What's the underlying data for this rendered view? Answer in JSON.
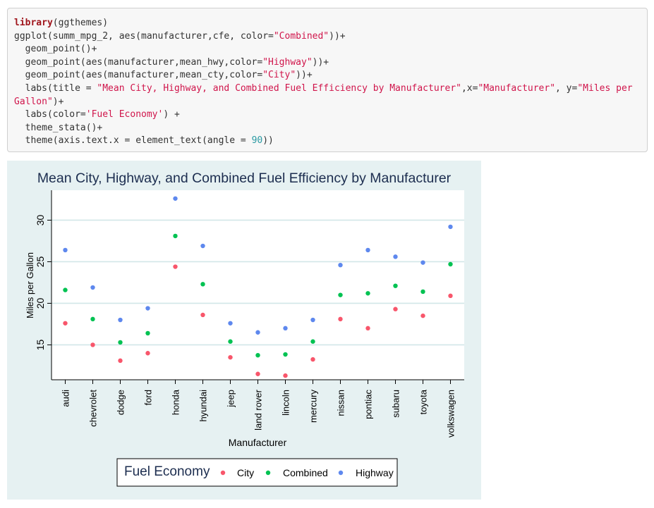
{
  "code": {
    "lines": [
      [
        {
          "t": "kw",
          "v": "library"
        },
        {
          "t": "plain",
          "v": "(ggthemes)"
        }
      ],
      [
        {
          "t": "plain",
          "v": "ggplot(summ_mpg_2, aes(manufacturer,cfe, color="
        },
        {
          "t": "str",
          "v": "\"Combined\""
        },
        {
          "t": "plain",
          "v": "))+"
        }
      ],
      [
        {
          "t": "plain",
          "v": "  geom_point()+"
        }
      ],
      [
        {
          "t": "plain",
          "v": "  geom_point(aes(manufacturer,mean_hwy,color="
        },
        {
          "t": "str",
          "v": "\"Highway\""
        },
        {
          "t": "plain",
          "v": "))+"
        }
      ],
      [
        {
          "t": "plain",
          "v": "  geom_point(aes(manufacturer,mean_cty,color="
        },
        {
          "t": "str",
          "v": "\"City\""
        },
        {
          "t": "plain",
          "v": "))+"
        }
      ],
      [
        {
          "t": "plain",
          "v": "  labs(title = "
        },
        {
          "t": "str",
          "v": "\"Mean City, Highway, and Combined Fuel Efficiency by Manufacturer\""
        },
        {
          "t": "plain",
          "v": ",x="
        },
        {
          "t": "str",
          "v": "\"Manufacturer\""
        },
        {
          "t": "plain",
          "v": ", y="
        },
        {
          "t": "str",
          "v": "\"Miles per Gallon\""
        },
        {
          "t": "plain",
          "v": ")+"
        }
      ],
      [
        {
          "t": "plain",
          "v": "  labs(color="
        },
        {
          "t": "str",
          "v": "'Fuel Economy'"
        },
        {
          "t": "plain",
          "v": ") +"
        }
      ],
      [
        {
          "t": "plain",
          "v": "  theme_stata()+"
        }
      ],
      [
        {
          "t": "plain",
          "v": "  theme(axis.text.x = element_text(angle = "
        },
        {
          "t": "num",
          "v": "90"
        },
        {
          "t": "plain",
          "v": "))"
        }
      ]
    ]
  },
  "chart_data": {
    "type": "scatter",
    "title": "Mean City, Highway, and Combined Fuel Efficiency by Manufacturer",
    "xlabel": "Manufacturer",
    "ylabel": "Miles per Gallon",
    "ylim": [
      10.8,
      33.6
    ],
    "yticks": [
      15,
      20,
      25,
      30
    ],
    "categories": [
      "audi",
      "chevrolet",
      "dodge",
      "ford",
      "honda",
      "hyundai",
      "jeep",
      "land rover",
      "lincoln",
      "mercury",
      "nissan",
      "pontiac",
      "subaru",
      "toyota",
      "volkswagen"
    ],
    "series": [
      {
        "name": "City",
        "color": "#f8566b",
        "values": [
          17.6,
          15.0,
          13.1,
          14.0,
          24.4,
          18.6,
          13.5,
          11.5,
          11.3,
          13.25,
          18.1,
          17.0,
          19.3,
          18.5,
          20.9
        ]
      },
      {
        "name": "Combined",
        "color": "#00c252",
        "values": [
          21.6,
          18.1,
          15.3,
          16.4,
          28.1,
          22.3,
          15.4,
          13.75,
          13.85,
          15.4,
          21.0,
          21.2,
          22.1,
          21.4,
          24.7
        ]
      },
      {
        "name": "Highway",
        "color": "#5e88ee",
        "values": [
          26.4,
          21.9,
          18.0,
          19.4,
          32.6,
          26.9,
          17.6,
          16.5,
          17.0,
          18.0,
          24.6,
          26.4,
          25.6,
          24.9,
          29.2
        ]
      }
    ],
    "grid": true,
    "legend_title": "Fuel Economy",
    "legend_position": "bottom",
    "background": "#e6f1f2",
    "plot_background": "#ffffff",
    "title_color": "#1c2d4f"
  }
}
